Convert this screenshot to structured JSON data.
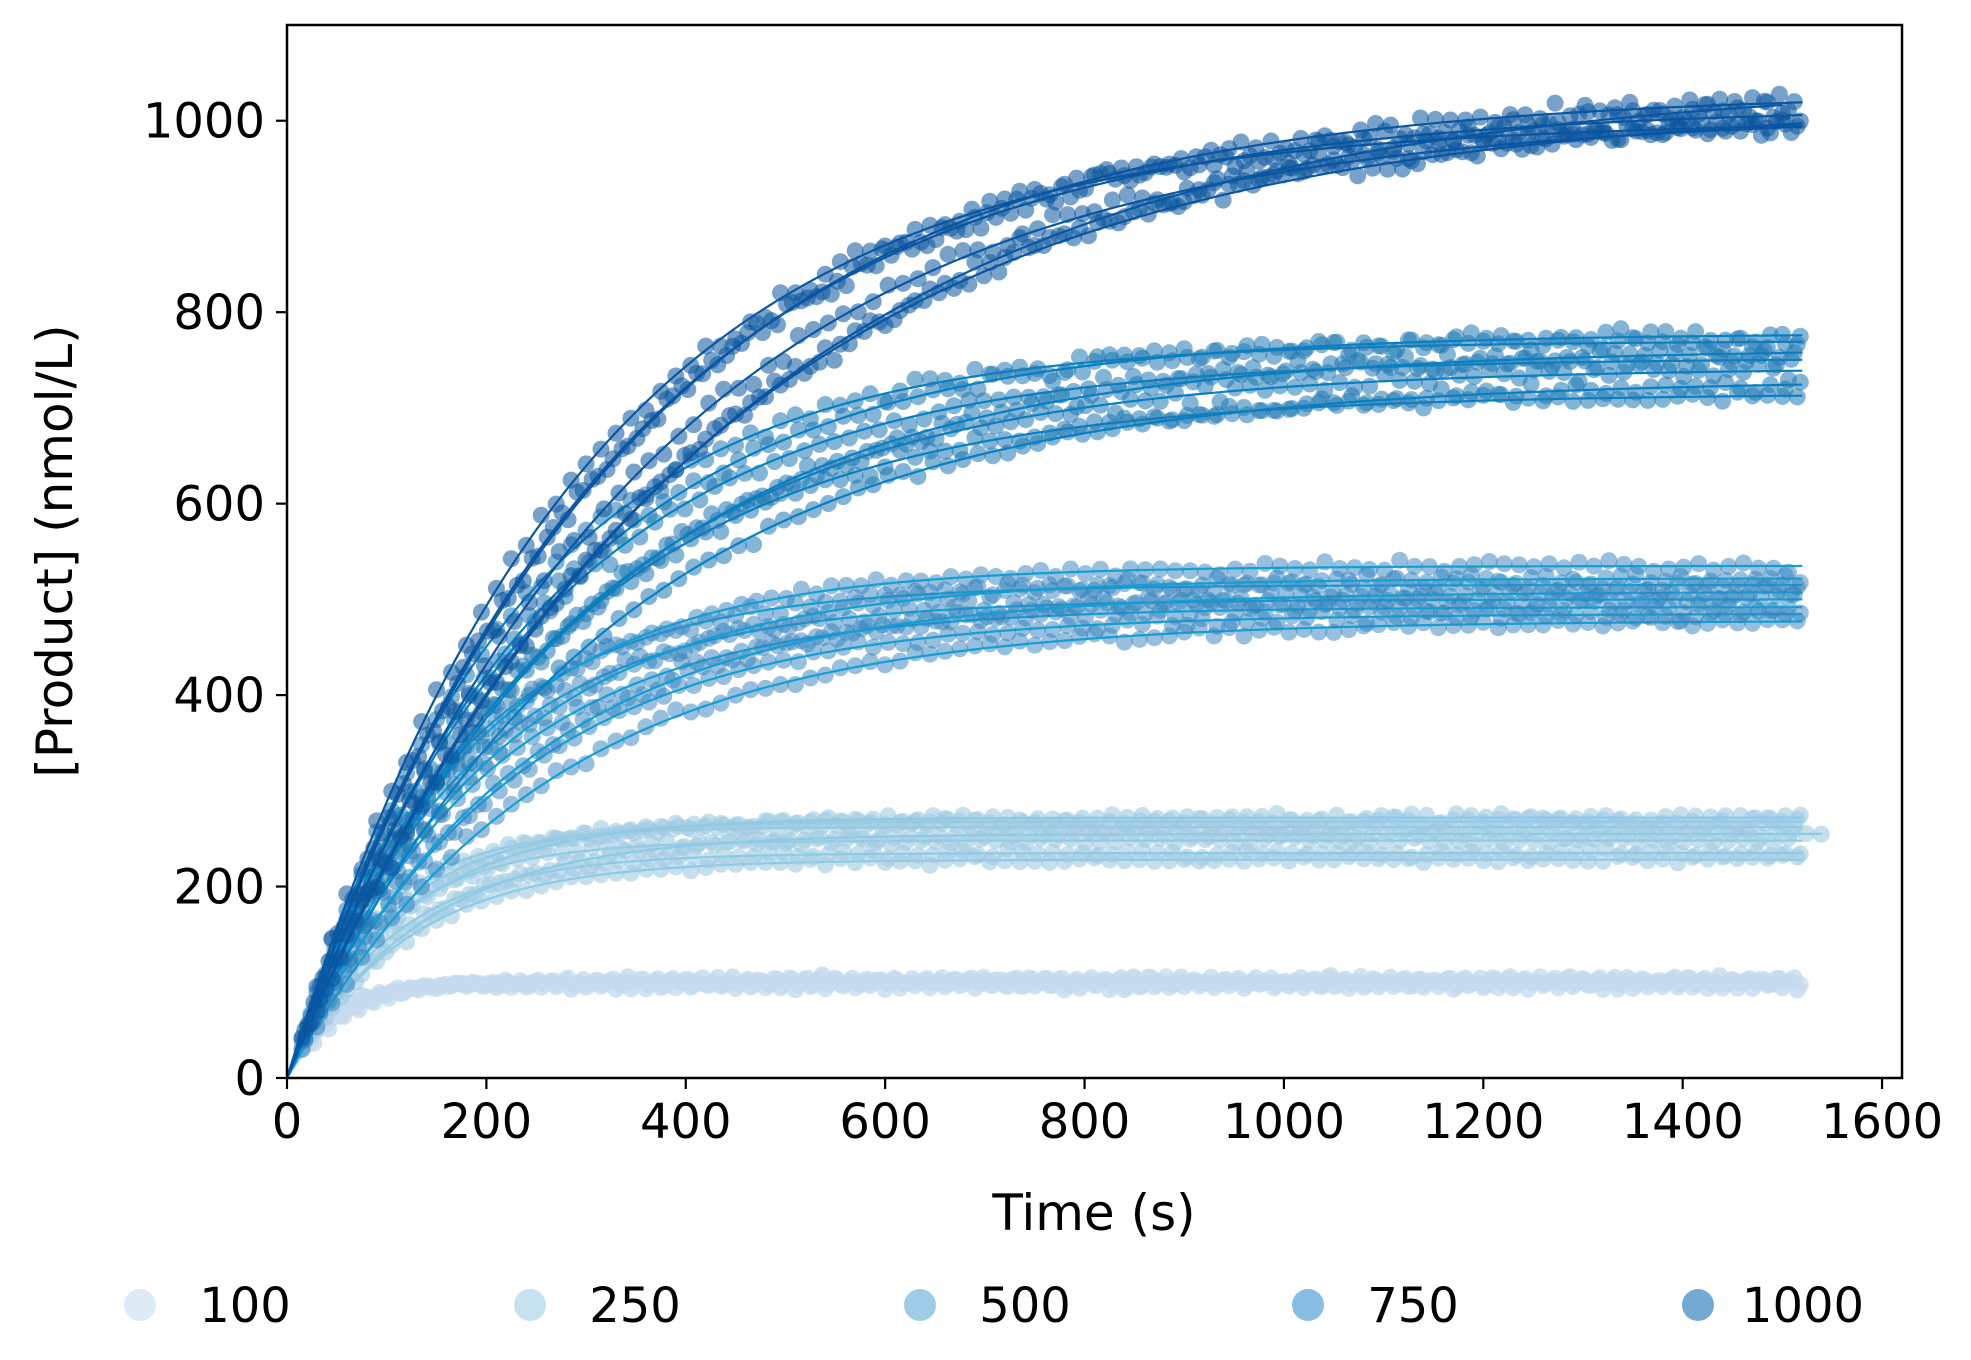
{
  "chart_data": {
    "type": "scatter",
    "title": "",
    "xlabel": "Time (s)",
    "ylabel": "[Product] (nmol/L)",
    "xlim": [
      0,
      1620
    ],
    "ylim": [
      0,
      1100
    ],
    "xticks": [
      0,
      200,
      400,
      600,
      800,
      1000,
      1200,
      1400,
      1600
    ],
    "yticks": [
      0,
      200,
      400,
      600,
      800,
      1000
    ],
    "xtick_labels": [
      "0",
      "200",
      "400",
      "600",
      "800",
      "1000",
      "1200",
      "1400",
      "1600"
    ],
    "ytick_labels": [
      "0",
      "200",
      "400",
      "600",
      "800",
      "1000"
    ],
    "grid": false,
    "legend_position": "bottom",
    "legend": [
      "100",
      "250",
      "500",
      "750",
      "1000"
    ],
    "series": [
      {
        "name": "100",
        "color": "#c6dbef",
        "line_color": "#c6dbef",
        "marker_opacity": 0.8,
        "replicates": [
          {
            "plateau": 95,
            "k": 0.03,
            "t_end": 1520
          },
          {
            "plateau": 98,
            "k": 0.026,
            "t_end": 1520
          },
          {
            "plateau": 100,
            "k": 0.022,
            "t_end": 1520
          },
          {
            "plateau": 102,
            "k": 0.019,
            "t_end": 1520
          },
          {
            "plateau": 104,
            "k": 0.016,
            "t_end": 1520
          }
        ]
      },
      {
        "name": "250",
        "color": "#9ecae1",
        "line_color": "#8ccbe6",
        "marker_opacity": 0.6,
        "replicates": [
          {
            "plateau": 228,
            "k": 0.0085,
            "t_end": 1520
          },
          {
            "plateau": 235,
            "k": 0.0095,
            "t_end": 1520
          },
          {
            "plateau": 248,
            "k": 0.0105,
            "t_end": 1520
          },
          {
            "plateau": 255,
            "k": 0.0075,
            "t_end": 1545
          },
          {
            "plateau": 262,
            "k": 0.0115,
            "t_end": 1520
          },
          {
            "plateau": 268,
            "k": 0.0098,
            "t_end": 1520
          },
          {
            "plateau": 272,
            "k": 0.0085,
            "t_end": 1520
          }
        ]
      },
      {
        "name": "500",
        "color": "#3182bd",
        "line_color": "#129fd4",
        "marker_opacity": 0.5,
        "replicates": [
          {
            "plateau": 478,
            "k": 0.004,
            "t_end": 1525
          },
          {
            "plateau": 485,
            "k": 0.0046,
            "t_end": 1520
          },
          {
            "plateau": 492,
            "k": 0.0052,
            "t_end": 1520
          },
          {
            "plateau": 500,
            "k": 0.0058,
            "t_end": 1520
          },
          {
            "plateau": 508,
            "k": 0.0044,
            "t_end": 1520
          },
          {
            "plateau": 515,
            "k": 0.0062,
            "t_end": 1520
          },
          {
            "plateau": 522,
            "k": 0.005,
            "t_end": 1520
          },
          {
            "plateau": 535,
            "k": 0.0056,
            "t_end": 1520
          }
        ]
      },
      {
        "name": "750",
        "color": "#1f78b4",
        "line_color": "#0580c3",
        "marker_opacity": 0.55,
        "replicates": [
          {
            "plateau": 715,
            "k": 0.0038,
            "t_end": 1520
          },
          {
            "plateau": 730,
            "k": 0.0032,
            "t_end": 1525
          },
          {
            "plateau": 742,
            "k": 0.0036,
            "t_end": 1520
          },
          {
            "plateau": 752,
            "k": 0.004,
            "t_end": 1520
          },
          {
            "plateau": 762,
            "k": 0.0034,
            "t_end": 1520
          },
          {
            "plateau": 770,
            "k": 0.0044,
            "t_end": 1520
          },
          {
            "plateau": 778,
            "k": 0.0039,
            "t_end": 1520
          }
        ]
      },
      {
        "name": "1000",
        "color": "#0b559f",
        "line_color": "#0a56a3",
        "marker_opacity": 0.55,
        "replicates": [
          {
            "plateau": 1000,
            "k": 0.0034,
            "t_end": 1520
          },
          {
            "plateau": 1008,
            "k": 0.0028,
            "t_end": 1520
          },
          {
            "plateau": 1015,
            "k": 0.0031,
            "t_end": 1520
          },
          {
            "plateau": 1020,
            "k": 0.0025,
            "t_end": 1520
          },
          {
            "plateau": 1030,
            "k": 0.003,
            "t_end": 1520
          },
          {
            "plateau": 1045,
            "k": 0.0024,
            "t_end": 1505
          }
        ]
      }
    ]
  }
}
